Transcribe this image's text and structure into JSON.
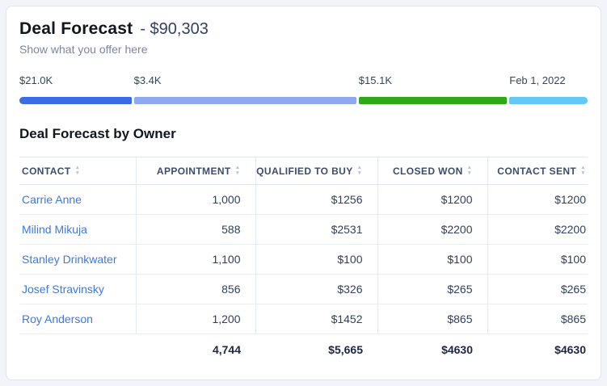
{
  "header": {
    "title": "Deal Forecast",
    "amount": "- $90,303",
    "subtitle": "Show what you offer here"
  },
  "icons": {
    "sort_asc": "▲",
    "sort_desc": "▼"
  },
  "funnel": {
    "segments": [
      {
        "label": "$21.0K",
        "color": "#3b6ce4",
        "weight": 139
      },
      {
        "label": "$3.4K",
        "color": "#8fa9ef",
        "weight": 276
      },
      {
        "label": "$15.1K",
        "color": "#2da816",
        "weight": 184
      },
      {
        "label": "Feb 1, 2022",
        "color": "#64c8f5",
        "weight": 97
      }
    ]
  },
  "table": {
    "title": "Deal Forecast by Owner",
    "columns": [
      "CONTACT",
      "APPOINTMENT",
      "QUALIFIED TO BUY",
      "CLOSED WON",
      "CONTACT SENT"
    ],
    "rows": [
      {
        "contact": "Carrie Anne",
        "values": [
          "1,000",
          "$1256",
          "$1200",
          "$1200"
        ]
      },
      {
        "contact": "Milind Mikuja",
        "values": [
          "588",
          "$2531",
          "$2200",
          "$2200"
        ]
      },
      {
        "contact": "Stanley Drinkwater",
        "values": [
          "1,100",
          "$100",
          "$100",
          "$100"
        ]
      },
      {
        "contact": "Josef Stravinsky",
        "values": [
          "856",
          "$326",
          "$265",
          "$265"
        ]
      },
      {
        "contact": "Roy Anderson",
        "values": [
          "1,200",
          "$1452",
          "$865",
          "$865"
        ]
      }
    ],
    "totals": [
      "",
      "4,744",
      "$5,665",
      "$4630",
      "$4630"
    ]
  }
}
